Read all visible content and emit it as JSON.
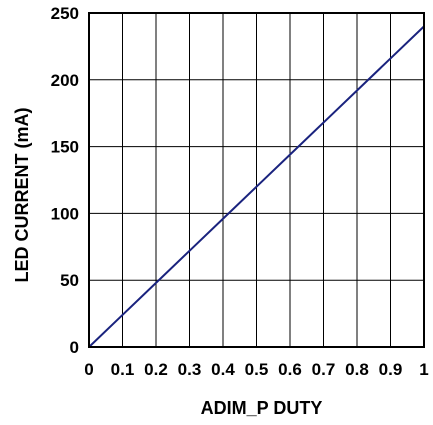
{
  "chart_data": {
    "type": "line",
    "title": "",
    "xlabel": "ADIM_P DUTY",
    "ylabel": "LED CURRENT (mA)",
    "xlim": [
      0,
      1
    ],
    "ylim": [
      0,
      250
    ],
    "x_ticks": [
      0,
      0.1,
      0.2,
      0.3,
      0.4,
      0.5,
      0.6,
      0.7,
      0.8,
      0.9,
      1
    ],
    "x_tick_labels": [
      "0",
      "0.1",
      "0.2",
      "0.3",
      "0.4",
      "0.5",
      "0.6",
      "0.7",
      "0.8",
      "0.9",
      "1"
    ],
    "y_ticks": [
      0,
      50,
      100,
      150,
      200,
      250
    ],
    "y_tick_labels": [
      "0",
      "50",
      "100",
      "150",
      "200",
      "250"
    ],
    "grid": true,
    "series": [
      {
        "x": [
          0,
          0.1,
          0.2,
          0.3,
          0.4,
          0.5,
          0.6,
          0.7,
          0.8,
          0.9,
          1
        ],
        "y": [
          0,
          24,
          48,
          72,
          96,
          120,
          144,
          168,
          192,
          216,
          240
        ],
        "color": "#1a237e"
      }
    ]
  }
}
